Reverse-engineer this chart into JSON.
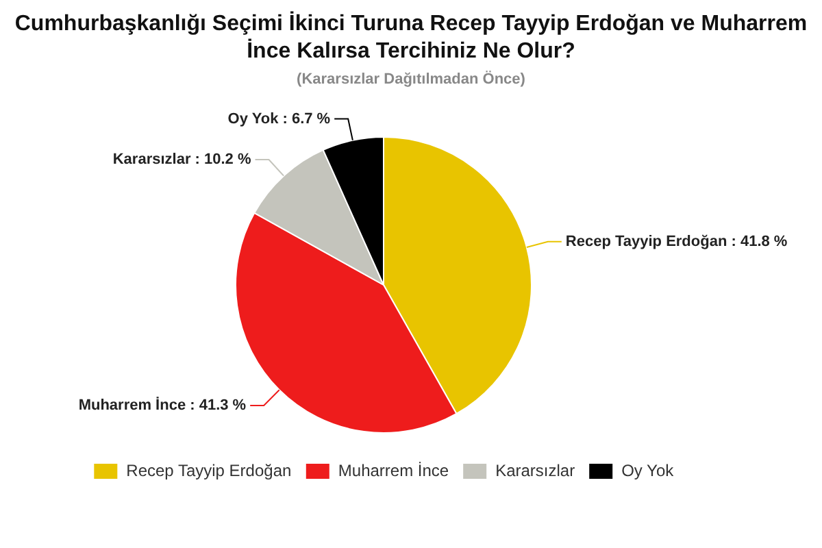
{
  "chart_data": {
    "type": "pie",
    "title": "Cumhurbaşkanlığı Seçimi İkinci Turuna Recep Tayyip Erdoğan ve Muharrem İnce Kalırsa Tercihiniz Ne Olur?",
    "subtitle": "(Kararsızlar Dağıtılmadan Önce)",
    "categories": [
      "Recep Tayyip Erdoğan",
      "Muharrem İnce",
      "Kararsızlar",
      "Oy Yok"
    ],
    "values": [
      41.8,
      41.3,
      10.2,
      6.7
    ],
    "colors": [
      "#e8c400",
      "#ee1c1c",
      "#c4c4bc",
      "#000000"
    ],
    "value_labels": [
      "Recep Tayyip Erdoğan : 41.8 %",
      "Muharrem İnce : 41.3 %",
      "Kararsızlar : 10.2 %",
      "Oy Yok : 6.7 %"
    ],
    "legend": "bottom"
  }
}
